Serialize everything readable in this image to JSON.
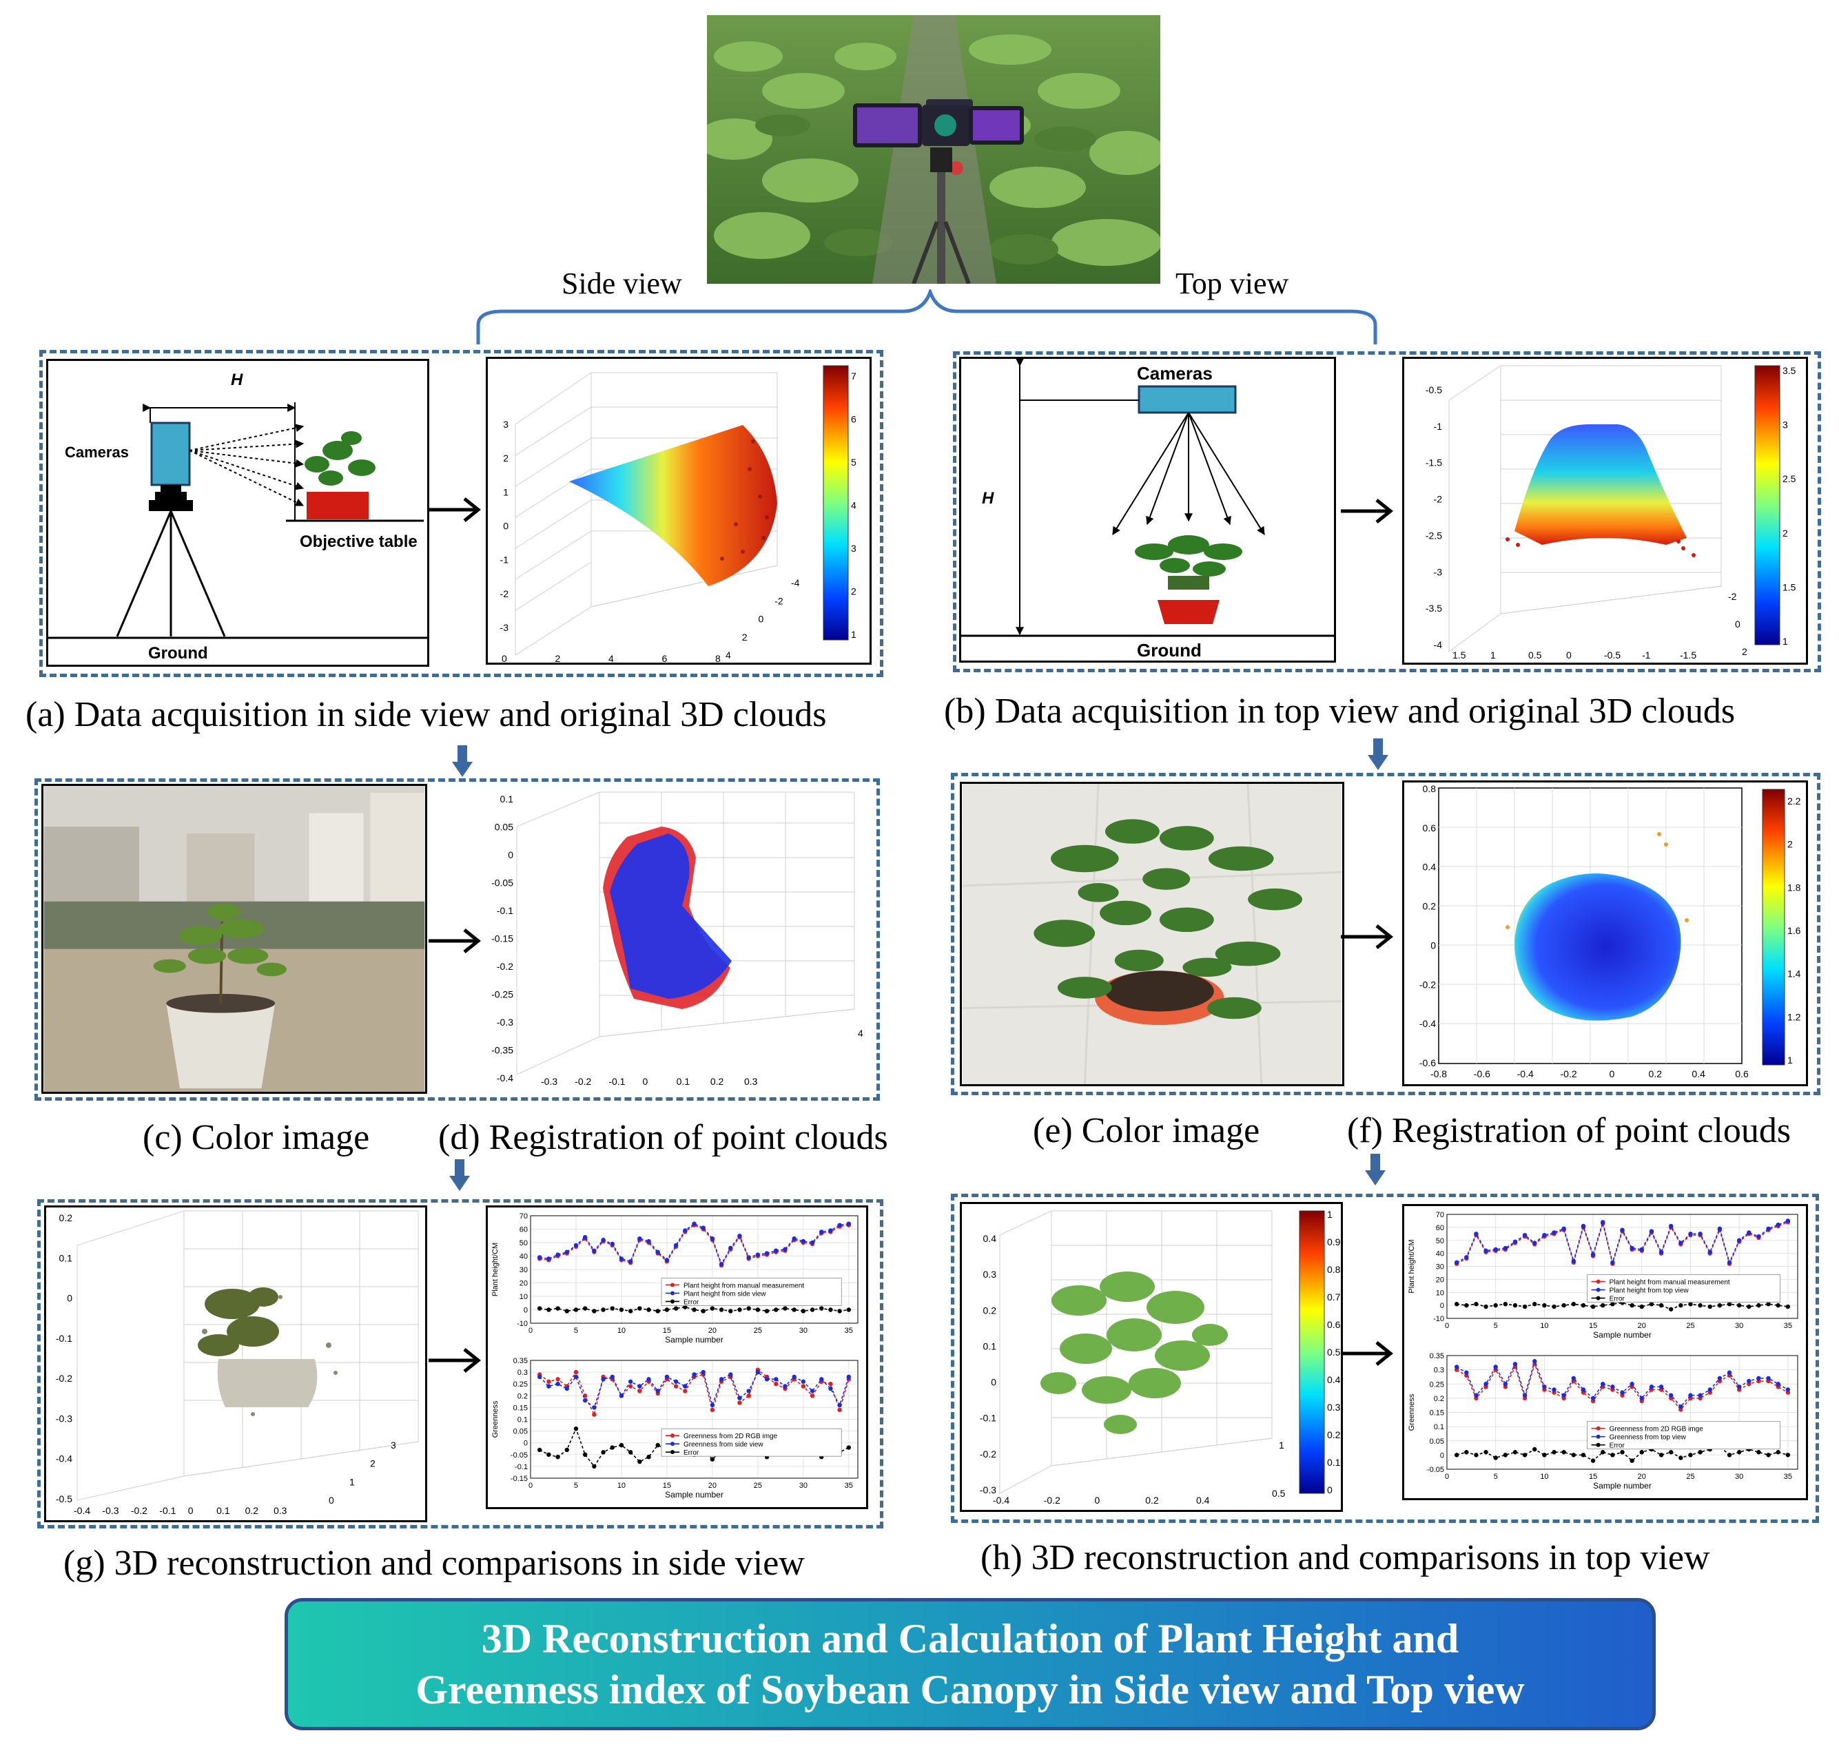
{
  "top_photo": {
    "description_icon": "field-camera-photo"
  },
  "view_labels": {
    "side": "Side view",
    "top": "Top view"
  },
  "schematic_side": {
    "h_label": "H",
    "cameras": "Cameras",
    "objective_table": "Objective table",
    "ground": "Ground"
  },
  "schematic_top": {
    "h_label": "H",
    "cameras": "Cameras",
    "ground": "Ground"
  },
  "captions": {
    "a": "(a) Data acquisition in side view and original 3D clouds",
    "b": "(b) Data acquisition in top view and original 3D clouds",
    "c": "(c) Color image",
    "d": "(d) Registration of point clouds",
    "e": "(e) Color image",
    "f": "(f) Registration of point clouds",
    "g": "(g) 3D reconstruction and comparisons in side view",
    "h": "(h) 3D reconstruction and comparisons in top view"
  },
  "plot_a": {
    "z_ticks": [
      "3",
      "2",
      "1",
      "0",
      "-1",
      "-2",
      "-3"
    ],
    "x_ticks": [
      "0",
      "2",
      "4",
      "6",
      "8"
    ],
    "y_ticks": [
      "-4",
      "-2",
      "0",
      "2",
      "4"
    ],
    "cbar_ticks": [
      "7",
      "6",
      "5",
      "4",
      "3",
      "2",
      "1"
    ]
  },
  "plot_b": {
    "z_ticks": [
      "-0.5",
      "-1",
      "-1.5",
      "-2",
      "-2.5",
      "-3",
      "-3.5",
      "-4"
    ],
    "x_ticks": [
      "1.5",
      "1",
      "0.5",
      "0",
      "-0.5",
      "-1",
      "-1.5"
    ],
    "y_ticks": [
      "-2",
      "0",
      "2"
    ],
    "cbar_ticks": [
      "3.5",
      "3",
      "2.5",
      "2",
      "1.5",
      "1"
    ]
  },
  "plot_d": {
    "z_ticks": [
      "0.1",
      "0.05",
      "0",
      "-0.05",
      "-0.1",
      "-0.15",
      "-0.2",
      "-0.25",
      "-0.3",
      "-0.35",
      "-0.4"
    ],
    "x_ticks": [
      "-0.3",
      "-0.2",
      "-0.1",
      "0",
      "0.1",
      "0.2",
      "0.3"
    ],
    "y_ticks": [
      "4"
    ]
  },
  "plot_f": {
    "y_ticks": [
      "0.8",
      "0.6",
      "0.4",
      "0.2",
      "0",
      "-0.2",
      "-0.4",
      "-0.6"
    ],
    "x_ticks": [
      "-0.8",
      "-0.6",
      "-0.4",
      "-0.2",
      "0",
      "0.2",
      "0.4",
      "0.6"
    ],
    "cbar_ticks": [
      "2.2",
      "2",
      "1.8",
      "1.6",
      "1.4",
      "1.2",
      "1"
    ]
  },
  "plot_g3d": {
    "z_ticks": [
      "0.2",
      "0.1",
      "0",
      "-0.1",
      "-0.2",
      "-0.3",
      "-0.4",
      "-0.5"
    ],
    "x_ticks": [
      "-0.4",
      "-0.3",
      "-0.2",
      "-0.1",
      "0",
      "0.1",
      "0.2",
      "0.3"
    ],
    "y_ticks": [
      "0",
      "1",
      "2",
      "3"
    ]
  },
  "plot_h3d": {
    "z_ticks": [
      "0.4",
      "0.3",
      "0.2",
      "0.1",
      "0",
      "-0.1",
      "-0.2",
      "-0.3"
    ],
    "x_ticks": [
      "-0.4",
      "-0.2",
      "0",
      "0.2",
      "0.4"
    ],
    "y_ticks": [
      "0.5",
      "1"
    ],
    "cbar_ticks": [
      "1",
      "0.9",
      "0.8",
      "0.7",
      "0.6",
      "0.5",
      "0.4",
      "0.3",
      "0.2",
      "0.1",
      "0"
    ]
  },
  "height_chart_side": {
    "ylabel": "Plant height/CM",
    "xlabel": "Sample number",
    "legend": [
      "Plant height from manual measurement",
      "Plant height from side view",
      "Error"
    ],
    "y_ticks": [
      "70",
      "60",
      "50",
      "40",
      "30",
      "20",
      "10",
      "0",
      "-10"
    ],
    "x_ticks": [
      "0",
      "5",
      "10",
      "15",
      "20",
      "25",
      "30",
      "35"
    ]
  },
  "greenness_chart_side": {
    "ylabel": "Greenness",
    "xlabel": "Sample number",
    "legend": [
      "Greenness from 2D RGB imge",
      "Greenness from side view",
      "Error"
    ],
    "y_ticks": [
      "0.35",
      "0.3",
      "0.25",
      "0.2",
      "0.15",
      "0.1",
      "0.05",
      "0",
      "-0.05",
      "-0.1",
      "-0.15"
    ],
    "x_ticks": [
      "0",
      "5",
      "10",
      "15",
      "20",
      "25",
      "30",
      "35"
    ]
  },
  "height_chart_top": {
    "ylabel": "Plant height/CM",
    "xlabel": "Sample number",
    "legend": [
      "Plant height from manual measurement",
      "Plant height from top view",
      "Error"
    ],
    "y_ticks": [
      "70",
      "60",
      "50",
      "40",
      "30",
      "20",
      "10",
      "0",
      "-10"
    ],
    "x_ticks": [
      "0",
      "5",
      "10",
      "15",
      "20",
      "25",
      "30",
      "35"
    ]
  },
  "greenness_chart_top": {
    "ylabel": "Greenness",
    "xlabel": "Sample number",
    "legend": [
      "Greenness from 2D RGB imge",
      "Greenness from top view",
      "Error"
    ],
    "y_ticks": [
      "0.35",
      "0.3",
      "0.25",
      "0.2",
      "0.15",
      "0.1",
      "0.05",
      "0",
      "-0.05"
    ],
    "x_ticks": [
      "0",
      "5",
      "10",
      "15",
      "20",
      "25",
      "30",
      "35"
    ]
  },
  "chart_data": [
    {
      "type": "line",
      "id": "height_side",
      "x": [
        1,
        2,
        3,
        4,
        5,
        6,
        7,
        8,
        9,
        10,
        11,
        12,
        13,
        14,
        15,
        16,
        17,
        18,
        19,
        20,
        21,
        22,
        23,
        24,
        25,
        26,
        27,
        28,
        29,
        30,
        31,
        32,
        33,
        34,
        35
      ],
      "series": [
        {
          "name": "Plant height from manual measurement",
          "values": [
            38,
            37,
            40,
            42,
            47,
            53,
            43,
            51,
            48,
            37,
            35,
            52,
            50,
            42,
            36,
            47,
            58,
            63,
            60,
            52,
            33,
            45,
            54,
            38,
            40,
            41,
            43,
            44,
            52,
            50,
            49,
            57,
            58,
            62,
            63
          ]
        },
        {
          "name": "Plant height from side view",
          "values": [
            39,
            38,
            41,
            43,
            48,
            54,
            44,
            52,
            49,
            38,
            36,
            53,
            51,
            43,
            37,
            48,
            59,
            64,
            61,
            53,
            34,
            46,
            55,
            39,
            41,
            42,
            44,
            45,
            53,
            51,
            50,
            58,
            59,
            63,
            64
          ]
        },
        {
          "name": "Error",
          "values": [
            1,
            0,
            1,
            -1,
            0,
            1,
            -1,
            0,
            1,
            0,
            -1,
            1,
            0,
            -1,
            0,
            1,
            2,
            0,
            -1,
            1,
            0,
            -1,
            0,
            1,
            0,
            -1,
            0,
            1,
            0,
            -1,
            0,
            1,
            0,
            -1,
            0
          ]
        }
      ],
      "ylim": [
        -10,
        70
      ]
    },
    {
      "type": "line",
      "id": "greenness_side",
      "x": [
        1,
        2,
        3,
        4,
        5,
        6,
        7,
        8,
        9,
        10,
        11,
        12,
        13,
        14,
        15,
        16,
        17,
        18,
        19,
        20,
        21,
        22,
        23,
        24,
        25,
        26,
        27,
        28,
        29,
        30,
        31,
        32,
        33,
        34,
        35
      ],
      "series": [
        {
          "name": "Greenness from 2D RGB imge",
          "values": [
            0.29,
            0.26,
            0.27,
            0.24,
            0.3,
            0.2,
            0.12,
            0.28,
            0.27,
            0.2,
            0.24,
            0.22,
            0.26,
            0.21,
            0.27,
            0.24,
            0.22,
            0.28,
            0.29,
            0.14,
            0.26,
            0.28,
            0.17,
            0.2,
            0.31,
            0.28,
            0.25,
            0.23,
            0.27,
            0.24,
            0.2,
            0.26,
            0.25,
            0.14,
            0.27
          ]
        },
        {
          "name": "Greenness from side view",
          "values": [
            0.28,
            0.24,
            0.25,
            0.23,
            0.28,
            0.18,
            0.15,
            0.27,
            0.28,
            0.2,
            0.26,
            0.24,
            0.27,
            0.22,
            0.28,
            0.26,
            0.24,
            0.29,
            0.3,
            0.16,
            0.27,
            0.29,
            0.19,
            0.22,
            0.3,
            0.27,
            0.27,
            0.24,
            0.28,
            0.26,
            0.22,
            0.27,
            0.23,
            0.16,
            0.28
          ]
        },
        {
          "name": "Error",
          "values": [
            -0.03,
            -0.05,
            -0.06,
            -0.03,
            0.06,
            -0.05,
            -0.1,
            -0.04,
            -0.02,
            -0.01,
            -0.04,
            -0.08,
            -0.06,
            -0.01,
            -0.03,
            -0.04,
            -0.04,
            -0.05,
            -0.03,
            -0.07,
            -0.03,
            -0.01,
            0.04,
            0.03,
            -0.04,
            -0.06,
            -0.03,
            -0.02,
            -0.04,
            -0.03,
            -0.03,
            -0.06,
            -0.03,
            -0.04,
            -0.02
          ]
        }
      ],
      "ylim": [
        -0.15,
        0.35
      ]
    },
    {
      "type": "line",
      "id": "height_top",
      "x": [
        1,
        2,
        3,
        4,
        5,
        6,
        7,
        8,
        9,
        10,
        11,
        12,
        13,
        14,
        15,
        16,
        17,
        18,
        19,
        20,
        21,
        22,
        23,
        24,
        25,
        26,
        27,
        28,
        29,
        30,
        31,
        32,
        33,
        34,
        35
      ],
      "series": [
        {
          "name": "Plant height from manual measurement",
          "values": [
            32,
            36,
            54,
            41,
            42,
            43,
            48,
            53,
            47,
            53,
            55,
            58,
            33,
            60,
            38,
            63,
            32,
            57,
            43,
            42,
            56,
            40,
            60,
            47,
            54,
            54,
            40,
            58,
            32,
            49,
            55,
            52,
            58,
            61,
            64
          ]
        },
        {
          "name": "Plant height from top view",
          "values": [
            33,
            37,
            55,
            42,
            43,
            44,
            49,
            54,
            48,
            54,
            56,
            59,
            34,
            61,
            39,
            64,
            33,
            58,
            44,
            43,
            57,
            41,
            61,
            48,
            55,
            55,
            41,
            59,
            33,
            50,
            56,
            53,
            59,
            62,
            65
          ]
        },
        {
          "name": "Error",
          "values": [
            1,
            0,
            1,
            -1,
            0,
            1,
            0,
            -1,
            1,
            0,
            -1,
            0,
            1,
            0,
            -1,
            0,
            1,
            2,
            0,
            -1,
            1,
            0,
            -3,
            0,
            1,
            0,
            -1,
            0,
            1,
            0,
            -1,
            0,
            1,
            0,
            -1
          ]
        }
      ],
      "ylim": [
        -10,
        70
      ]
    },
    {
      "type": "line",
      "id": "greenness_top",
      "x": [
        1,
        2,
        3,
        4,
        5,
        6,
        7,
        8,
        9,
        10,
        11,
        12,
        13,
        14,
        15,
        16,
        17,
        18,
        19,
        20,
        21,
        22,
        23,
        24,
        25,
        26,
        27,
        28,
        29,
        30,
        31,
        32,
        33,
        34,
        35
      ],
      "series": [
        {
          "name": "Greenness from 2D RGB imge",
          "values": [
            0.3,
            0.28,
            0.2,
            0.24,
            0.3,
            0.24,
            0.31,
            0.2,
            0.32,
            0.23,
            0.22,
            0.2,
            0.26,
            0.22,
            0.19,
            0.24,
            0.23,
            0.21,
            0.24,
            0.19,
            0.23,
            0.23,
            0.2,
            0.16,
            0.2,
            0.2,
            0.22,
            0.26,
            0.28,
            0.23,
            0.25,
            0.26,
            0.26,
            0.24,
            0.22
          ]
        },
        {
          "name": "Greenness from top view",
          "values": [
            0.31,
            0.29,
            0.21,
            0.25,
            0.31,
            0.25,
            0.32,
            0.21,
            0.33,
            0.24,
            0.23,
            0.21,
            0.27,
            0.23,
            0.2,
            0.25,
            0.24,
            0.22,
            0.25,
            0.2,
            0.24,
            0.24,
            0.21,
            0.17,
            0.21,
            0.21,
            0.23,
            0.27,
            0.29,
            0.24,
            0.26,
            0.27,
            0.27,
            0.25,
            0.23
          ]
        },
        {
          "name": "Error",
          "values": [
            0,
            0.01,
            0,
            0.01,
            -0.01,
            0,
            0.01,
            0,
            0.02,
            0,
            0.01,
            0.01,
            0,
            0,
            -0.02,
            0.01,
            0,
            0.01,
            -0.02,
            0.01,
            0.02,
            0,
            0.01,
            -0.01,
            0,
            0.01,
            0.02,
            0.03,
            0,
            0.01,
            0.02,
            0.01,
            0,
            0.01,
            0
          ]
        }
      ],
      "ylim": [
        -0.05,
        0.35
      ]
    }
  ],
  "title": {
    "line1": "3D Reconstruction and Calculation of Plant Height and",
    "line2": "Greenness index of Soybean Canopy in Side view and Top view"
  }
}
